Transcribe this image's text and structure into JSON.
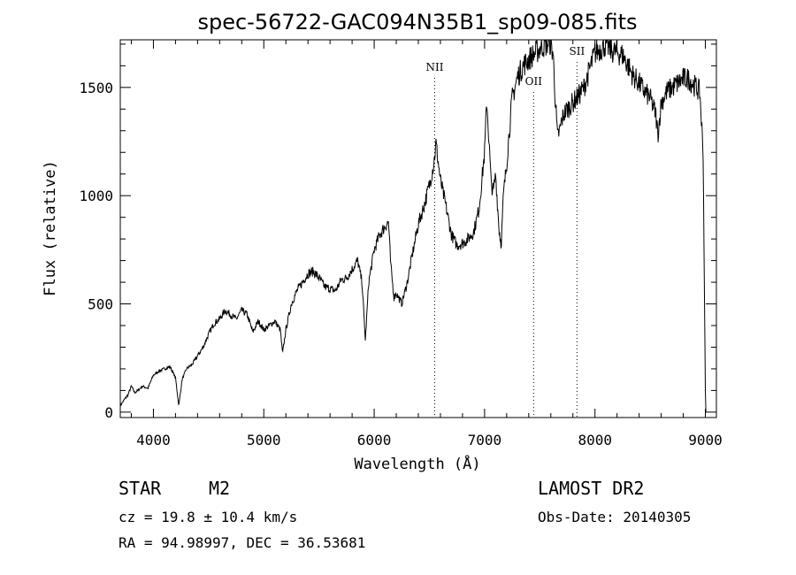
{
  "chart_data": {
    "type": "line",
    "title": "spec-56722-GAC094N35B1_sp09-085.fits",
    "xlabel": "Wavelength (Å)",
    "ylabel": "Flux (relative)",
    "xlim": [
      3700,
      9100
    ],
    "ylim": [
      -25,
      1720
    ],
    "xticks": [
      4000,
      5000,
      6000,
      7000,
      8000,
      9000
    ],
    "yticks": [
      0,
      500,
      1000,
      1500
    ],
    "grid": false,
    "lines": [
      {
        "label": "NII",
        "x": 6548
      },
      {
        "label": "OII",
        "x": 7444
      },
      {
        "label": "SII",
        "x": 7837
      }
    ],
    "series": [
      {
        "x": [
          3700,
          3740,
          3770,
          3800,
          3830,
          3860,
          3900,
          3950,
          4000,
          4050,
          4100,
          4150,
          4200,
          4230,
          4260,
          4300,
          4350,
          4400,
          4450,
          4500,
          4550,
          4600,
          4650,
          4700,
          4750,
          4800,
          4850,
          4900,
          4950,
          5000,
          5050,
          5100,
          5150,
          5170,
          5200,
          5250,
          5300,
          5350,
          5400,
          5450,
          5500,
          5550,
          5600,
          5650,
          5700,
          5750,
          5800,
          5850,
          5890,
          5920,
          5950,
          6000,
          6050,
          6100,
          6130,
          6150,
          6180,
          6200,
          6250,
          6300,
          6350,
          6400,
          6450,
          6500,
          6540,
          6560,
          6600,
          6650,
          6700,
          6750,
          6800,
          6850,
          6900,
          6950,
          7000,
          7020,
          7040,
          7060,
          7080,
          7100,
          7130,
          7150,
          7170,
          7200,
          7250,
          7300,
          7350,
          7400,
          7440,
          7480,
          7520,
          7560,
          7590,
          7620,
          7640,
          7660,
          7680,
          7700,
          7720,
          7750,
          7800,
          7850,
          7900,
          7950,
          8000,
          8050,
          8100,
          8150,
          8200,
          8250,
          8300,
          8350,
          8400,
          8450,
          8500,
          8550,
          8570,
          8600,
          8650,
          8700,
          8750,
          8800,
          8850,
          8900,
          8950,
          8980,
          9000,
          9005
        ],
        "y": [
          30,
          60,
          80,
          120,
          90,
          100,
          120,
          110,
          170,
          190,
          200,
          210,
          160,
          30,
          150,
          200,
          220,
          260,
          300,
          360,
          410,
          430,
          470,
          450,
          430,
          470,
          450,
          370,
          420,
          380,
          400,
          420,
          380,
          270,
          380,
          500,
          560,
          600,
          640,
          650,
          620,
          580,
          570,
          560,
          610,
          620,
          660,
          700,
          600,
          330,
          600,
          750,
          820,
          860,
          880,
          680,
          530,
          550,
          500,
          600,
          740,
          870,
          950,
          1050,
          1150,
          1240,
          1070,
          950,
          820,
          770,
          780,
          800,
          830,
          940,
          1200,
          1440,
          1250,
          1050,
          1020,
          1100,
          850,
          770,
          1000,
          1150,
          1450,
          1550,
          1600,
          1630,
          1650,
          1670,
          1690,
          1700,
          1710,
          1660,
          1450,
          1270,
          1300,
          1350,
          1380,
          1400,
          1430,
          1460,
          1500,
          1580,
          1660,
          1680,
          1700,
          1670,
          1660,
          1650,
          1600,
          1550,
          1520,
          1480,
          1450,
          1380,
          1280,
          1430,
          1480,
          1500,
          1520,
          1540,
          1540,
          1510,
          1480,
          1200,
          100,
          0
        ]
      }
    ]
  },
  "info": {
    "object_type": "STAR",
    "subclass": "M2",
    "redshift": "cz = 19.8 ± 10.4 km/s",
    "position": "RA =  94.98997, DEC =  36.53681",
    "survey": "LAMOST DR2",
    "obs_date": "Obs-Date: 20140305"
  }
}
